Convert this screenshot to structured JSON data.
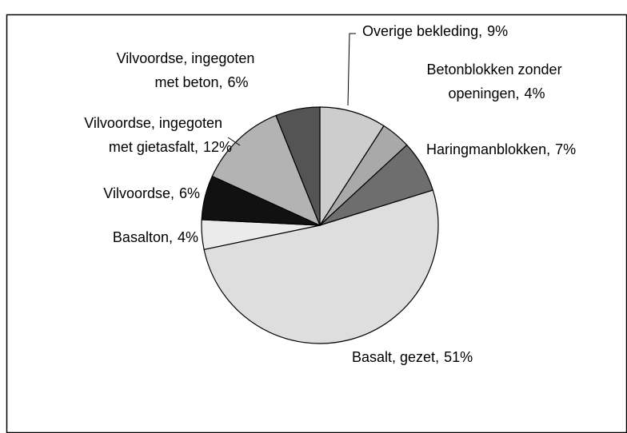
{
  "chart_data": {
    "type": "pie",
    "categories": [
      [
        "Overige bekleding,"
      ],
      [
        "Betonblokken zonder",
        "openingen,"
      ],
      [
        "Haringmanblokken,"
      ],
      [
        "Basalt, gezet,"
      ],
      [
        "Basalton,"
      ],
      [
        "Vilvoordse,"
      ],
      [
        "Vilvoordse, ingegoten",
        "met gietasfalt,"
      ],
      [
        "Vilvoordse, ingegoten",
        "met beton,"
      ]
    ],
    "values": [
      9,
      4,
      7,
      51,
      4,
      6,
      12,
      6
    ],
    "value_labels": [
      "9%",
      "4%",
      "7%",
      "51%",
      "4%",
      "6%",
      "12%",
      "6%"
    ],
    "colors": [
      "#cdcdcd",
      "#a9a9a9",
      "#6e6e6e",
      "#dedede",
      "#ebebeb",
      "#111111",
      "#b3b3b3",
      "#545454"
    ]
  }
}
